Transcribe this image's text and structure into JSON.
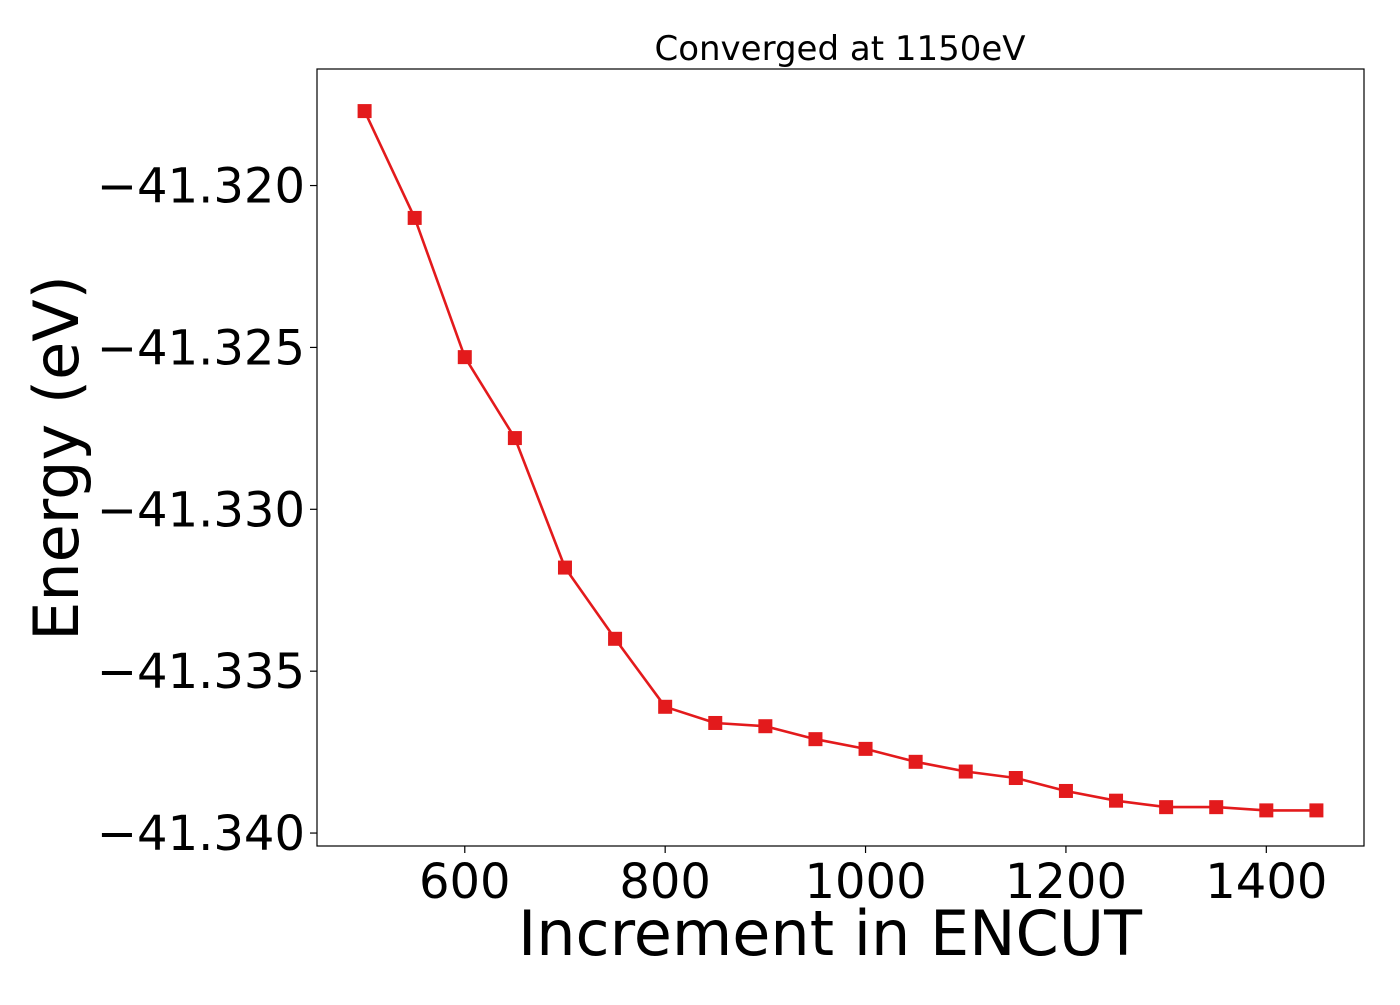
{
  "chart_data": {
    "type": "line",
    "title": "Converged at 1150eV",
    "xlabel": "Increment in ENCUT",
    "ylabel": "Energy (eV)",
    "xlim": [
      452.5,
      1497.5
    ],
    "ylim": [
      -41.3404,
      -41.3164
    ],
    "xticks": [
      600,
      800,
      1000,
      1200,
      1400
    ],
    "xtick_labels": [
      "600",
      "800",
      "1000",
      "1200",
      "1400"
    ],
    "yticks": [
      -41.32,
      -41.325,
      -41.33,
      -41.335,
      -41.34
    ],
    "ytick_labels": [
      "−41.320",
      "−41.325",
      "−41.330",
      "−41.335",
      "−41.340"
    ],
    "grid": false,
    "legend": false,
    "series": [
      {
        "color": "#e31a1c",
        "marker": "square",
        "x": [
          500,
          550,
          600,
          650,
          700,
          750,
          800,
          850,
          900,
          950,
          1000,
          1050,
          1100,
          1150,
          1200,
          1250,
          1300,
          1350,
          1400,
          1450
        ],
        "y": [
          -41.3177,
          -41.321,
          -41.3253,
          -41.3278,
          -41.3318,
          -41.334,
          -41.3361,
          -41.3366,
          -41.3367,
          -41.3371,
          -41.3374,
          -41.3378,
          -41.3381,
          -41.3383,
          -41.3387,
          -41.339,
          -41.3392,
          -41.3392,
          -41.3393,
          -41.3393
        ]
      }
    ]
  }
}
